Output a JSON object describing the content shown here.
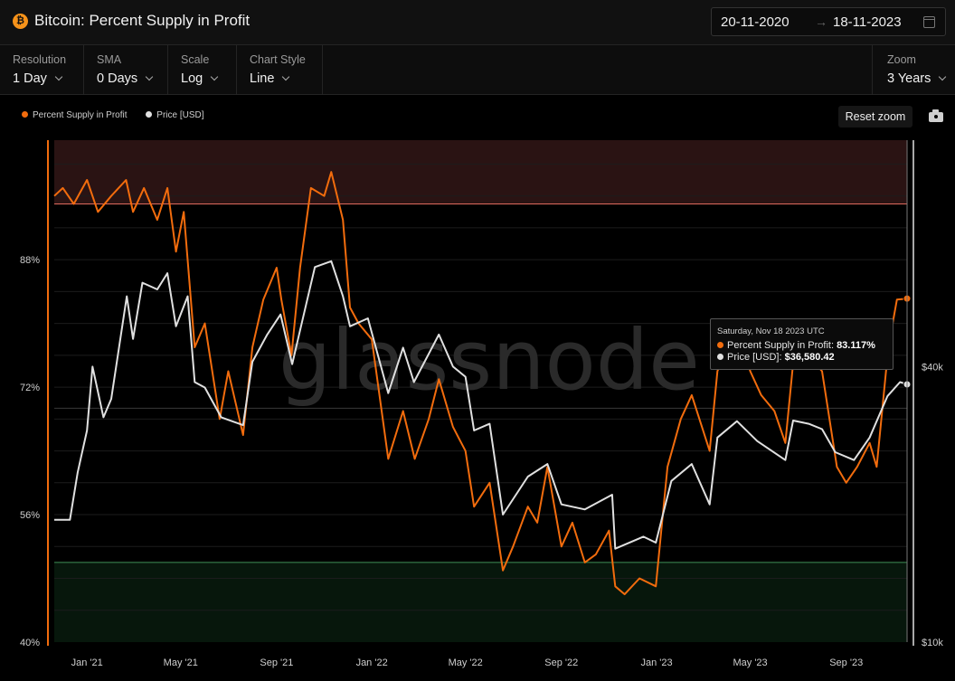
{
  "header": {
    "title": "Bitcoin: Percent Supply in Profit",
    "btc_symbol": "₿",
    "date_start": "20-11-2020",
    "date_arrow": "→",
    "date_end": "18-11-2023"
  },
  "toolbar": {
    "resolution": {
      "label": "Resolution",
      "value": "1 Day"
    },
    "sma": {
      "label": "SMA",
      "value": "0 Days"
    },
    "scale": {
      "label": "Scale",
      "value": "Log"
    },
    "chart_style": {
      "label": "Chart Style",
      "value": "Line"
    },
    "zoom": {
      "label": "Zoom",
      "value": "3 Years"
    }
  },
  "legend": {
    "series1": "Percent Supply in Profit",
    "series2": "Price [USD]"
  },
  "reset_label": "Reset zoom",
  "watermark": "glassnode",
  "tooltip": {
    "date": "Saturday, Nov 18 2023 UTC",
    "row1_label": "Percent Supply in Profit: ",
    "row1_value": "83.117%",
    "row2_label": "Price [USD]: ",
    "row2_value": "$36,580.42"
  },
  "colors": {
    "profit": "#f26c0d",
    "price": "#e0e0e0",
    "upper_band": "#2a1313",
    "lower_band": "#07170c",
    "upper_line": "#e06a5e",
    "lower_line": "#3f8f56"
  },
  "chart_data": {
    "type": "line",
    "x_range": [
      "2020-11-20",
      "2023-11-18"
    ],
    "x_ticks": [
      {
        "label": "Jan '21",
        "date": "2021-01-01"
      },
      {
        "label": "May '21",
        "date": "2021-05-01"
      },
      {
        "label": "Sep '21",
        "date": "2021-09-01"
      },
      {
        "label": "Jan '22",
        "date": "2022-01-01"
      },
      {
        "label": "May '22",
        "date": "2022-05-01"
      },
      {
        "label": "Sep '22",
        "date": "2022-09-01"
      },
      {
        "label": "Jan '23",
        "date": "2023-01-01"
      },
      {
        "label": "May '23",
        "date": "2023-05-01"
      },
      {
        "label": "Sep '23",
        "date": "2023-09-01"
      }
    ],
    "y_left": {
      "ticks": [
        {
          "label": "88%",
          "value": 88
        },
        {
          "label": "72%",
          "value": 72
        },
        {
          "label": "56%",
          "value": 56
        },
        {
          "label": "40%",
          "value": 40
        }
      ],
      "range": [
        40,
        103
      ]
    },
    "y_right": {
      "scale": "log",
      "ticks": [
        {
          "label": "$40k",
          "value": 40000
        },
        {
          "label": "$10k",
          "value": 10000
        }
      ],
      "range": [
        10000,
        125000
      ]
    },
    "bands": {
      "upper_threshold": 95,
      "lower_threshold": 50
    },
    "series": [
      {
        "name": "Percent Supply in Profit",
        "points": [
          [
            "2020-11-20",
            96
          ],
          [
            "2020-12-01",
            97
          ],
          [
            "2020-12-15",
            95
          ],
          [
            "2021-01-01",
            98
          ],
          [
            "2021-01-15",
            94
          ],
          [
            "2021-02-01",
            96
          ],
          [
            "2021-02-20",
            98
          ],
          [
            "2021-03-01",
            94
          ],
          [
            "2021-03-15",
            97
          ],
          [
            "2021-04-01",
            93
          ],
          [
            "2021-04-14",
            97
          ],
          [
            "2021-04-25",
            89
          ],
          [
            "2021-05-05",
            94
          ],
          [
            "2021-05-19",
            77
          ],
          [
            "2021-06-01",
            80
          ],
          [
            "2021-06-20",
            68
          ],
          [
            "2021-07-01",
            74
          ],
          [
            "2021-07-20",
            66
          ],
          [
            "2021-08-01",
            77
          ],
          [
            "2021-08-15",
            83
          ],
          [
            "2021-09-01",
            87
          ],
          [
            "2021-09-07",
            83
          ],
          [
            "2021-09-20",
            76
          ],
          [
            "2021-10-01",
            87
          ],
          [
            "2021-10-15",
            97
          ],
          [
            "2021-11-01",
            96
          ],
          [
            "2021-11-10",
            99
          ],
          [
            "2021-11-25",
            93
          ],
          [
            "2021-12-04",
            82
          ],
          [
            "2021-12-15",
            80
          ],
          [
            "2022-01-01",
            78
          ],
          [
            "2022-01-22",
            63
          ],
          [
            "2022-02-10",
            69
          ],
          [
            "2022-02-25",
            63
          ],
          [
            "2022-03-15",
            68
          ],
          [
            "2022-03-28",
            73
          ],
          [
            "2022-04-15",
            67
          ],
          [
            "2022-05-01",
            64
          ],
          [
            "2022-05-12",
            57
          ],
          [
            "2022-06-01",
            60
          ],
          [
            "2022-06-18",
            49
          ],
          [
            "2022-07-01",
            52
          ],
          [
            "2022-07-20",
            57
          ],
          [
            "2022-08-01",
            55
          ],
          [
            "2022-08-14",
            62
          ],
          [
            "2022-09-01",
            52
          ],
          [
            "2022-09-15",
            55
          ],
          [
            "2022-10-01",
            50
          ],
          [
            "2022-10-15",
            51
          ],
          [
            "2022-11-01",
            54
          ],
          [
            "2022-11-09",
            47
          ],
          [
            "2022-11-21",
            46
          ],
          [
            "2022-12-10",
            48
          ],
          [
            "2022-12-31",
            47
          ],
          [
            "2023-01-15",
            62
          ],
          [
            "2023-02-01",
            68
          ],
          [
            "2023-02-15",
            71
          ],
          [
            "2023-03-10",
            64
          ],
          [
            "2023-03-20",
            74
          ],
          [
            "2023-04-01",
            77
          ],
          [
            "2023-04-14",
            80
          ],
          [
            "2023-05-01",
            74
          ],
          [
            "2023-05-15",
            71
          ],
          [
            "2023-06-01",
            69
          ],
          [
            "2023-06-15",
            65
          ],
          [
            "2023-06-25",
            75
          ],
          [
            "2023-07-15",
            76
          ],
          [
            "2023-08-01",
            74
          ],
          [
            "2023-08-20",
            62
          ],
          [
            "2023-09-01",
            60
          ],
          [
            "2023-09-15",
            62
          ],
          [
            "2023-10-01",
            65
          ],
          [
            "2023-10-10",
            62
          ],
          [
            "2023-10-25",
            77
          ],
          [
            "2023-11-05",
            83
          ],
          [
            "2023-11-18",
            83.117
          ]
        ]
      },
      {
        "name": "Price [USD]",
        "points": [
          [
            "2020-11-20",
            18500
          ],
          [
            "2020-12-10",
            18500
          ],
          [
            "2020-12-20",
            23500
          ],
          [
            "2021-01-01",
            29000
          ],
          [
            "2021-01-08",
            40000
          ],
          [
            "2021-01-22",
            31000
          ],
          [
            "2021-02-01",
            34000
          ],
          [
            "2021-02-21",
            57000
          ],
          [
            "2021-03-01",
            46000
          ],
          [
            "2021-03-13",
            61000
          ],
          [
            "2021-04-01",
            59000
          ],
          [
            "2021-04-14",
            64000
          ],
          [
            "2021-04-25",
            49000
          ],
          [
            "2021-05-10",
            57000
          ],
          [
            "2021-05-19",
            37000
          ],
          [
            "2021-06-01",
            36000
          ],
          [
            "2021-06-22",
            31000
          ],
          [
            "2021-07-20",
            29800
          ],
          [
            "2021-08-01",
            41000
          ],
          [
            "2021-08-20",
            47000
          ],
          [
            "2021-09-06",
            52000
          ],
          [
            "2021-09-21",
            40500
          ],
          [
            "2021-10-01",
            48000
          ],
          [
            "2021-10-20",
            66000
          ],
          [
            "2021-11-10",
            68000
          ],
          [
            "2021-11-25",
            57000
          ],
          [
            "2021-12-04",
            49000
          ],
          [
            "2021-12-27",
            51000
          ],
          [
            "2022-01-22",
            35000
          ],
          [
            "2022-02-10",
            44000
          ],
          [
            "2022-02-24",
            37000
          ],
          [
            "2022-03-28",
            47000
          ],
          [
            "2022-04-15",
            40000
          ],
          [
            "2022-05-01",
            38000
          ],
          [
            "2022-05-12",
            29000
          ],
          [
            "2022-06-01",
            30000
          ],
          [
            "2022-06-18",
            19000
          ],
          [
            "2022-07-20",
            23000
          ],
          [
            "2022-08-14",
            24500
          ],
          [
            "2022-09-01",
            20000
          ],
          [
            "2022-10-01",
            19500
          ],
          [
            "2022-11-05",
            21000
          ],
          [
            "2022-11-09",
            16000
          ],
          [
            "2022-12-15",
            17000
          ],
          [
            "2022-12-31",
            16500
          ],
          [
            "2023-01-20",
            22500
          ],
          [
            "2023-02-15",
            24500
          ],
          [
            "2023-03-10",
            20000
          ],
          [
            "2023-03-20",
            28000
          ],
          [
            "2023-04-14",
            30400
          ],
          [
            "2023-05-10",
            27500
          ],
          [
            "2023-06-15",
            25000
          ],
          [
            "2023-06-25",
            30500
          ],
          [
            "2023-07-15",
            30000
          ],
          [
            "2023-08-01",
            29200
          ],
          [
            "2023-08-18",
            26000
          ],
          [
            "2023-09-11",
            25000
          ],
          [
            "2023-10-01",
            28000
          ],
          [
            "2023-10-24",
            34500
          ],
          [
            "2023-11-09",
            37000
          ],
          [
            "2023-11-18",
            36580.42
          ]
        ]
      }
    ]
  }
}
